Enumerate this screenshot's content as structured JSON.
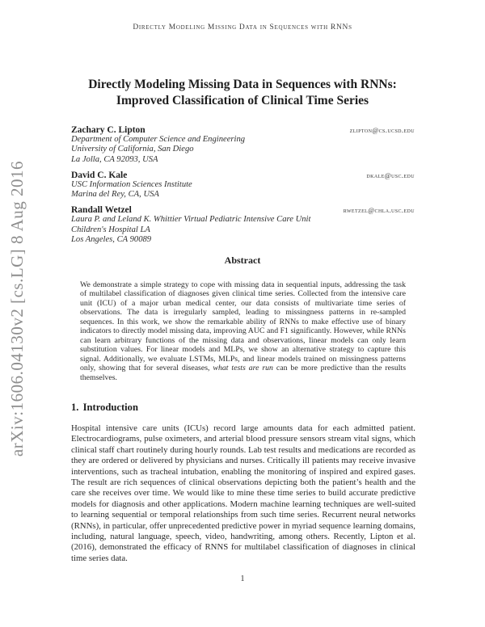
{
  "page": {
    "running_title": "Directly Modeling Missing Data in Sequences with RNNs",
    "arxiv_label": "arXiv:1606.04130v2  [cs.LG]  8 Aug 2016",
    "page_number": "1"
  },
  "title": {
    "line1": "Directly Modeling Missing Data in Sequences with RNNs:",
    "line2": "Improved Classification of Clinical Time Series"
  },
  "authors": [
    {
      "name": "Zachary C. Lipton",
      "email": "zlipton@cs.ucsd.edu",
      "affiliation": [
        "Department of Computer Science and Engineering",
        "University of California, San Diego",
        "La Jolla, CA 92093, USA"
      ]
    },
    {
      "name": "David C. Kale",
      "email": "dkale@usc.edu",
      "affiliation": [
        "USC Information Sciences Institute",
        "Marina del Rey, CA, USA"
      ]
    },
    {
      "name": "Randall Wetzel",
      "email": "rwetzel@chla.usc.edu",
      "affiliation": [
        "Laura P. and Leland K. Whittier Virtual Pediatric Intensive Care Unit",
        "Children's Hospital LA",
        "Los Angeles, CA 90089"
      ]
    }
  ],
  "abstract": {
    "heading": "Abstract",
    "before_italic": "We demonstrate a simple strategy to cope with missing data in sequential inputs, addressing the task of multilabel classification of diagnoses given clinical time series. Collected from the intensive care unit (ICU) of a major urban medical center, our data consists of multivariate time series of observations. The data is irregularly sampled, leading to missingness patterns in re-sampled sequences. In this work, we show the remarkable ability of RNNs to make effective use of binary indicators to directly model missing data, improving AUC and F1 significantly. However, while RNNs can learn arbitrary functions of the missing data and observations, linear models can only learn substitution values. For linear models and MLPs, we show an alternative strategy to capture this signal. Additionally, we evaluate LSTMs, MLPs, and linear models trained on missingness patterns only, showing that for several diseases, ",
    "italic_phrase": "what tests are run",
    "after_italic": " can be more predictive than the results themselves."
  },
  "introduction": {
    "heading": "1.  Introduction",
    "paragraph": "Hospital intensive care units (ICUs) record large amounts data for each admitted patient. Electrocardiograms, pulse oximeters, and arterial blood pressure sensors stream vital signs, which clinical staff chart routinely during hourly rounds. Lab test results and medications are recorded as they are ordered or delivered by physicians and nurses. Critically ill patients may receive invasive interventions, such as tracheal intubation, enabling the monitoring of inspired and expired gases. The result are rich sequences of clinical observations depicting both the patient’s health and the care she receives over time. We would like to mine these time series to build accurate predictive models for diagnosis and other applications. Modern machine learning techniques are well-suited to learning sequential or temporal relationships from such time series. Recurrent neural networks (RNNs), in particular, offer unprecedented predictive power in myriad sequence learning domains, including, natural language, speech, video, handwriting, among others. Recently, Lipton et al. (2016), demonstrated the efficacy of RNNS for multilabel classification of diagnoses in clinical time series data."
  },
  "colors": {
    "background": "#ffffff",
    "text": "#2a2a2a",
    "watermark_gray": "#8e8e8e"
  }
}
